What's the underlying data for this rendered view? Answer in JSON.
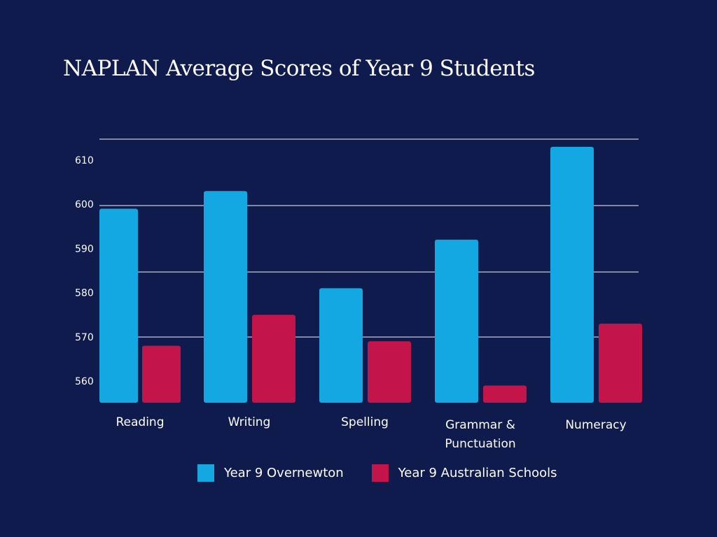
{
  "chart_data": {
    "type": "bar",
    "title": "NAPLAN Average Scores of Year 9 Students",
    "xlabel": "",
    "ylabel": "",
    "categories": [
      "Reading",
      "Writing",
      "Spelling",
      "Grammar & Punctuation",
      "Numeracy"
    ],
    "category_lines": [
      [
        "Reading"
      ],
      [
        "Writing"
      ],
      [
        "Spelling"
      ],
      [
        "Grammar &",
        "Punctuation"
      ],
      [
        "Numeracy"
      ]
    ],
    "series": [
      {
        "name": "Year 9 Overnewton",
        "color": "#14a8e2",
        "values": [
          599,
          603,
          581,
          592,
          613
        ]
      },
      {
        "name": "Year 9 Australian Schools",
        "color": "#c4154b",
        "values": [
          568,
          575,
          569,
          559,
          573
        ]
      }
    ],
    "yticks": [
      610,
      600,
      590,
      580,
      570,
      560
    ],
    "ylim": [
      555,
      615
    ],
    "grid": true,
    "legend_position": "bottom-center"
  },
  "background_color": "#0f1a4d"
}
